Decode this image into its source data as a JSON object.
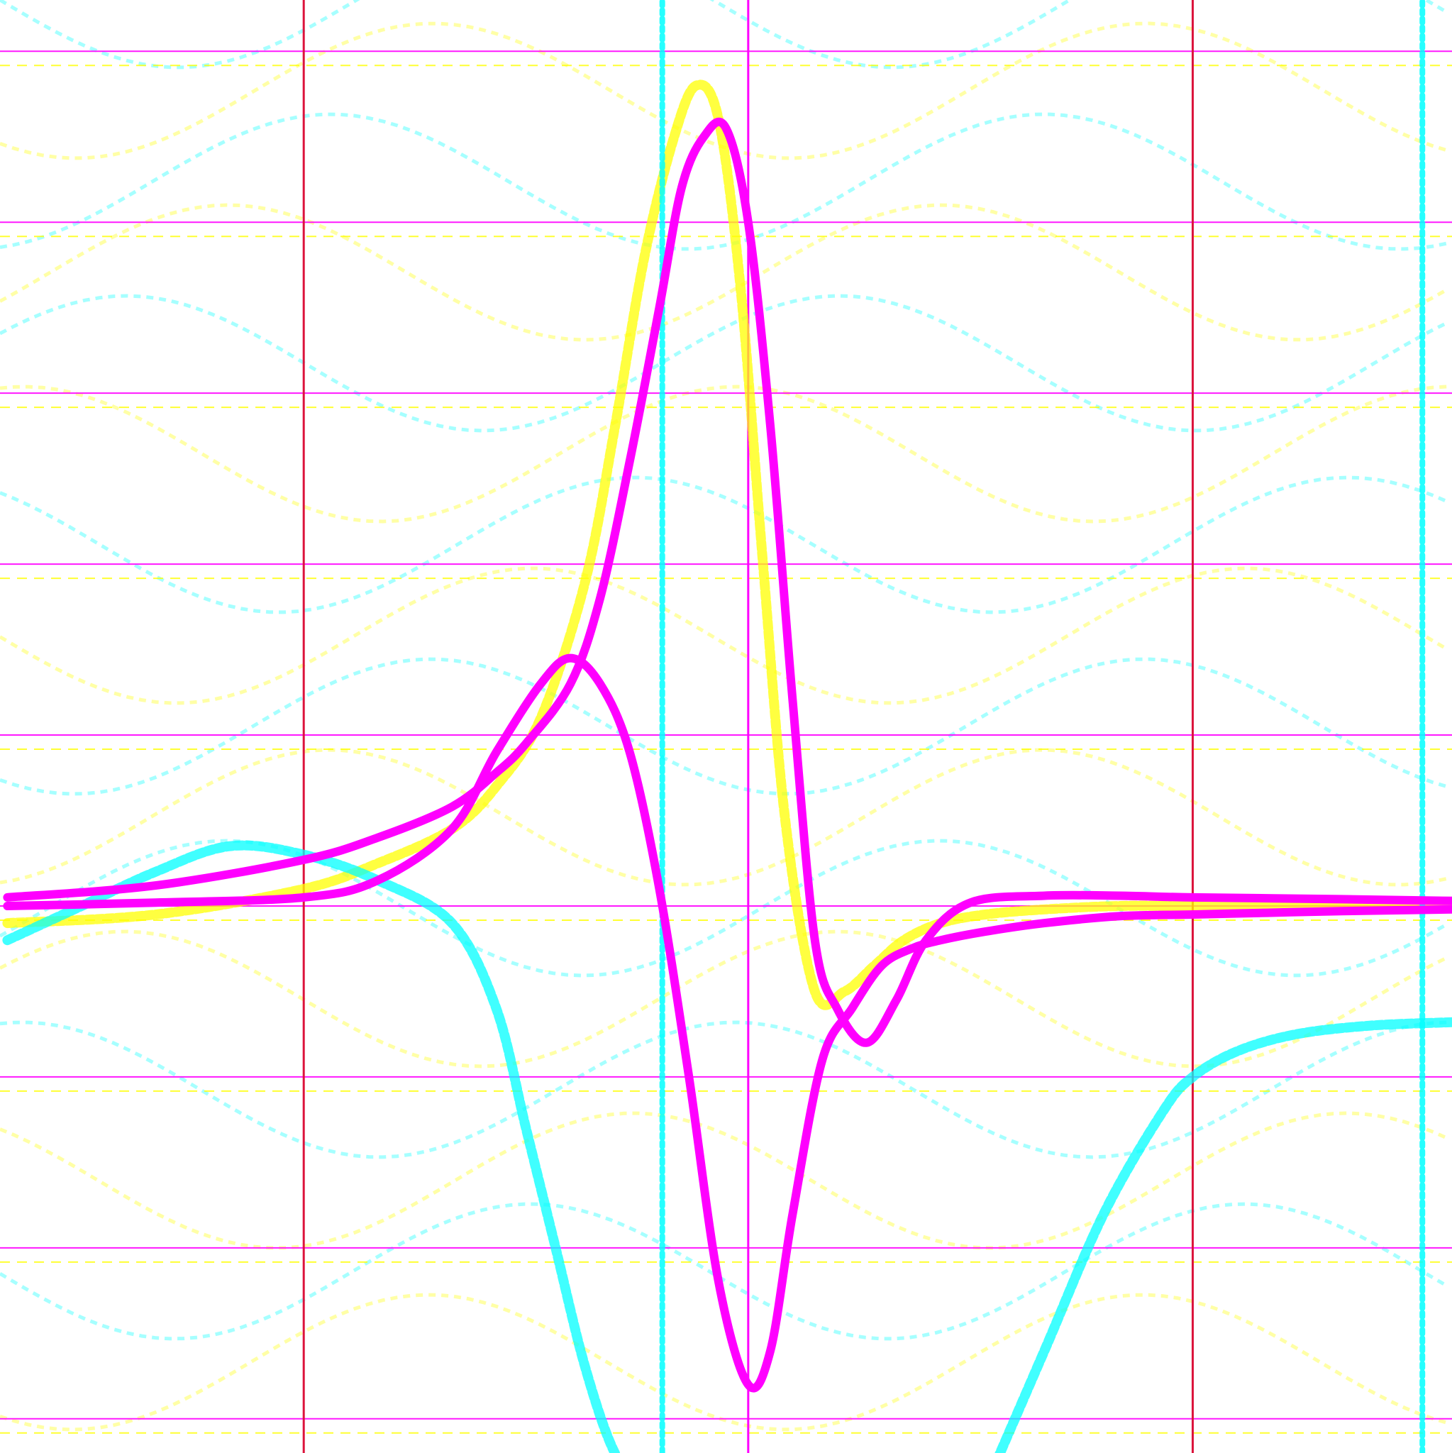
{
  "chart_data": {
    "type": "line",
    "grid": true,
    "xlim": [
      -5.05,
      4.75
    ],
    "ylim": [
      -3.2,
      5.3
    ],
    "grid_x": [
      -3,
      0,
      3
    ],
    "grid_y": [
      -3,
      -2,
      -1,
      0,
      1,
      2,
      3,
      4,
      5
    ],
    "axis_color_x": "#dc143c",
    "axis_color_y": "#ff00ff",
    "series": [
      {
        "color": "#ff00ff",
        "role": "primary",
        "x": [
          -5,
          -4,
          -3,
          -2.5,
          -2,
          -1.7,
          -1.5,
          -1.2,
          -1,
          -0.8,
          -0.6,
          -0.45,
          -0.3,
          -0.15,
          0,
          0.15,
          0.3,
          0.45,
          0.6,
          0.8,
          1,
          1.2,
          1.5,
          2,
          2.5,
          3,
          4,
          4.75
        ],
        "y": [
          0.05,
          0.12,
          0.27,
          0.4,
          0.58,
          0.78,
          0.95,
          1.3,
          1.8,
          2.6,
          3.5,
          4.2,
          4.5,
          4.55,
          4.0,
          2.8,
          1.2,
          -0.2,
          -0.6,
          -0.8,
          -0.55,
          -0.2,
          0.02,
          0.06,
          0.06,
          0.05,
          0.04,
          0.03
        ]
      },
      {
        "color": "#ff00ff",
        "role": "primary",
        "x": [
          -5,
          -4,
          -3,
          -2.5,
          -2,
          -1.7,
          -1.4,
          -1.2,
          -1,
          -0.8,
          -0.6,
          -0.4,
          -0.2,
          0,
          0.15,
          0.3,
          0.5,
          0.7,
          0.9,
          1.1,
          1.3,
          1.6,
          2,
          2.5,
          3,
          3.5,
          4,
          4.75
        ],
        "y": [
          0.0,
          0.02,
          0.05,
          0.15,
          0.45,
          0.9,
          1.3,
          1.45,
          1.3,
          0.9,
          0.1,
          -1.0,
          -2.2,
          -2.8,
          -2.6,
          -1.8,
          -0.9,
          -0.6,
          -0.35,
          -0.25,
          -0.2,
          -0.15,
          -0.1,
          -0.06,
          -0.05,
          -0.04,
          -0.03,
          -0.02
        ]
      },
      {
        "color": "#ffff00",
        "role": "trail",
        "x": [
          -5,
          -4,
          -3,
          -2.5,
          -2,
          -1.7,
          -1.4,
          -1.1,
          -0.9,
          -0.7,
          -0.5,
          -0.35,
          -0.2,
          -0.05,
          0.1,
          0.25,
          0.45,
          0.65,
          0.85,
          1.05,
          1.3,
          1.6,
          2,
          2.5,
          3,
          4,
          4.75
        ],
        "y": [
          -0.1,
          -0.05,
          0.1,
          0.25,
          0.45,
          0.7,
          1.1,
          1.9,
          2.8,
          3.8,
          4.5,
          4.8,
          4.6,
          3.6,
          2.0,
          0.5,
          -0.5,
          -0.5,
          -0.35,
          -0.2,
          -0.1,
          -0.05,
          -0.02,
          0.0,
          0.0,
          0.0,
          0.0
        ]
      },
      {
        "color": "#00ffff",
        "role": "trail",
        "x": [
          -5,
          -4.5,
          -4,
          -3.5,
          -3,
          -2.5,
          -2,
          -1.7,
          -1.5,
          -1.3,
          -1.1,
          -0.9,
          -0.7
        ],
        "y": [
          -0.2,
          0.0,
          0.2,
          0.35,
          0.3,
          0.15,
          -0.1,
          -0.6,
          -1.3,
          -2.0,
          -2.7,
          -3.2,
          -3.4
        ]
      },
      {
        "color": "#00ffff",
        "role": "trail",
        "x": [
          1.6,
          2.0,
          2.4,
          2.8,
          3.0,
          3.3,
          3.7,
          4.2,
          4.75
        ],
        "y": [
          -3.4,
          -2.6,
          -1.8,
          -1.2,
          -1.0,
          -0.85,
          -0.75,
          -0.7,
          -0.68
        ]
      },
      {
        "color": "#00ffff",
        "role": "vertical-trail",
        "x": [
          -0.58,
          -0.58
        ],
        "y": [
          -3.3,
          5.3
        ]
      },
      {
        "color": "#00ffff",
        "role": "vertical-trail",
        "x": [
          4.55,
          4.55
        ],
        "y": [
          -3.3,
          5.3
        ]
      }
    ]
  }
}
